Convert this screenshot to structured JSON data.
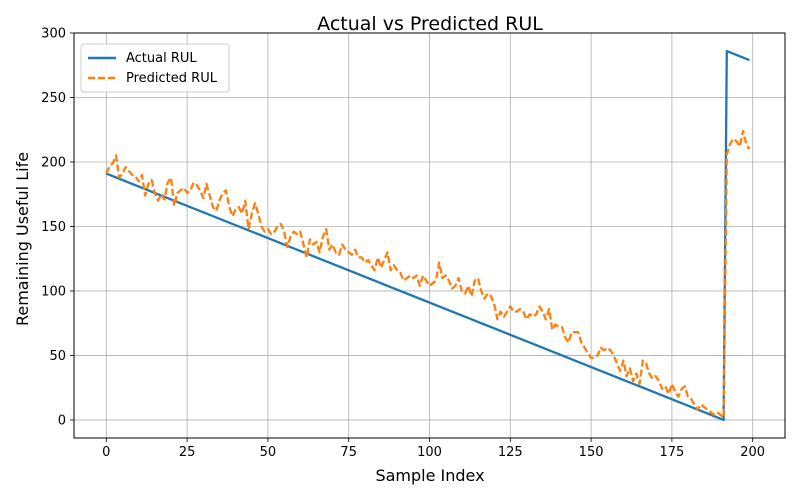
{
  "chart_data": {
    "type": "line",
    "title": "Actual vs Predicted RUL",
    "xlabel": "Sample Index",
    "ylabel": "Remaining Useful Life",
    "xlim": [
      -10,
      210
    ],
    "ylim": [
      -14,
      300
    ],
    "xticks": [
      "0",
      "25",
      "50",
      "75",
      "100",
      "125",
      "150",
      "175",
      "200"
    ],
    "yticks": [
      "0",
      "50",
      "100",
      "150",
      "200",
      "250",
      "300"
    ],
    "grid": true,
    "legend_position": "top-left",
    "series": [
      {
        "name": "Actual RUL",
        "color": "#1f77b4",
        "style": "solid",
        "points": [
          [
            0,
            191
          ],
          [
            191,
            0
          ],
          [
            192,
            286
          ],
          [
            199,
            279
          ]
        ]
      },
      {
        "name": "Predicted RUL",
        "color": "#ff7f0e",
        "style": "dashed",
        "points": [
          [
            0,
            191
          ],
          [
            1,
            197
          ],
          [
            2,
            199
          ],
          [
            3,
            205
          ],
          [
            4,
            188
          ],
          [
            5,
            191
          ],
          [
            6,
            196
          ],
          [
            7,
            193
          ],
          [
            8,
            190
          ],
          [
            9,
            189
          ],
          [
            10,
            185
          ],
          [
            11,
            190
          ],
          [
            12,
            174
          ],
          [
            13,
            183
          ],
          [
            14,
            186
          ],
          [
            15,
            176
          ],
          [
            16,
            170
          ],
          [
            17,
            175
          ],
          [
            18,
            171
          ],
          [
            19,
            184
          ],
          [
            20,
            188
          ],
          [
            21,
            166
          ],
          [
            22,
            176
          ],
          [
            23,
            178
          ],
          [
            24,
            180
          ],
          [
            25,
            176
          ],
          [
            26,
            178
          ],
          [
            27,
            184
          ],
          [
            28,
            182
          ],
          [
            29,
            178
          ],
          [
            30,
            172
          ],
          [
            31,
            183
          ],
          [
            32,
            174
          ],
          [
            33,
            165
          ],
          [
            34,
            162
          ],
          [
            35,
            170
          ],
          [
            36,
            176
          ],
          [
            37,
            178
          ],
          [
            38,
            166
          ],
          [
            39,
            158
          ],
          [
            40,
            163
          ],
          [
            41,
            165
          ],
          [
            42,
            160
          ],
          [
            43,
            170
          ],
          [
            44,
            148
          ],
          [
            45,
            160
          ],
          [
            46,
            168
          ],
          [
            47,
            160
          ],
          [
            48,
            150
          ],
          [
            49,
            146
          ],
          [
            50,
            148
          ],
          [
            51,
            144
          ],
          [
            52,
            146
          ],
          [
            53,
            150
          ],
          [
            54,
            152
          ],
          [
            55,
            146
          ],
          [
            56,
            134
          ],
          [
            57,
            142
          ],
          [
            58,
            146
          ],
          [
            59,
            144
          ],
          [
            60,
            146
          ],
          [
            61,
            136
          ],
          [
            62,
            126
          ],
          [
            63,
            140
          ],
          [
            64,
            136
          ],
          [
            65,
            138
          ],
          [
            66,
            130
          ],
          [
            67,
            142
          ],
          [
            68,
            148
          ],
          [
            69,
            132
          ],
          [
            70,
            136
          ],
          [
            71,
            130
          ],
          [
            72,
            128
          ],
          [
            73,
            136
          ],
          [
            74,
            132
          ],
          [
            75,
            130
          ],
          [
            76,
            128
          ],
          [
            77,
            132
          ],
          [
            78,
            126
          ],
          [
            79,
            126
          ],
          [
            80,
            122
          ],
          [
            81,
            124
          ],
          [
            82,
            120
          ],
          [
            83,
            116
          ],
          [
            84,
            126
          ],
          [
            85,
            118
          ],
          [
            86,
            124
          ],
          [
            87,
            130
          ],
          [
            88,
            116
          ],
          [
            89,
            120
          ],
          [
            90,
            116
          ],
          [
            91,
            114
          ],
          [
            92,
            108
          ],
          [
            93,
            110
          ],
          [
            94,
            112
          ],
          [
            95,
            110
          ],
          [
            96,
            112
          ],
          [
            97,
            104
          ],
          [
            98,
            112
          ],
          [
            99,
            108
          ],
          [
            100,
            104
          ],
          [
            101,
            106
          ],
          [
            102,
            108
          ],
          [
            103,
            122
          ],
          [
            104,
            110
          ],
          [
            105,
            112
          ],
          [
            106,
            108
          ],
          [
            107,
            102
          ],
          [
            108,
            104
          ],
          [
            109,
            110
          ],
          [
            110,
            100
          ],
          [
            111,
            98
          ],
          [
            112,
            104
          ],
          [
            113,
            96
          ],
          [
            114,
            108
          ],
          [
            115,
            110
          ],
          [
            116,
            100
          ],
          [
            117,
            94
          ],
          [
            118,
            98
          ],
          [
            119,
            96
          ],
          [
            120,
            90
          ],
          [
            121,
            78
          ],
          [
            122,
            84
          ],
          [
            123,
            80
          ],
          [
            124,
            84
          ],
          [
            125,
            88
          ],
          [
            126,
            84
          ],
          [
            127,
            84
          ],
          [
            128,
            86
          ],
          [
            129,
            84
          ],
          [
            130,
            78
          ],
          [
            131,
            82
          ],
          [
            132,
            80
          ],
          [
            133,
            82
          ],
          [
            134,
            88
          ],
          [
            135,
            84
          ],
          [
            136,
            78
          ],
          [
            137,
            86
          ],
          [
            138,
            70
          ],
          [
            139,
            74
          ],
          [
            140,
            72
          ],
          [
            141,
            72
          ],
          [
            142,
            64
          ],
          [
            143,
            60
          ],
          [
            144,
            68
          ],
          [
            145,
            68
          ],
          [
            146,
            68
          ],
          [
            147,
            60
          ],
          [
            148,
            56
          ],
          [
            149,
            52
          ],
          [
            150,
            48
          ],
          [
            151,
            48
          ],
          [
            152,
            50
          ],
          [
            153,
            56
          ],
          [
            154,
            54
          ],
          [
            155,
            56
          ],
          [
            156,
            54
          ],
          [
            157,
            50
          ],
          [
            158,
            44
          ],
          [
            159,
            38
          ],
          [
            160,
            46
          ],
          [
            161,
            34
          ],
          [
            162,
            40
          ],
          [
            163,
            30
          ],
          [
            164,
            36
          ],
          [
            165,
            28
          ],
          [
            166,
            46
          ],
          [
            167,
            44
          ],
          [
            168,
            36
          ],
          [
            169,
            32
          ],
          [
            170,
            34
          ],
          [
            171,
            30
          ],
          [
            172,
            24
          ],
          [
            173,
            26
          ],
          [
            174,
            20
          ],
          [
            175,
            28
          ],
          [
            176,
            22
          ],
          [
            177,
            18
          ],
          [
            178,
            24
          ],
          [
            179,
            26
          ],
          [
            180,
            18
          ],
          [
            181,
            16
          ],
          [
            182,
            12
          ],
          [
            183,
            8
          ],
          [
            184,
            12
          ],
          [
            185,
            10
          ],
          [
            186,
            8
          ],
          [
            187,
            6
          ],
          [
            188,
            4
          ],
          [
            189,
            6
          ],
          [
            190,
            4
          ],
          [
            191,
            2
          ],
          [
            192,
            206
          ],
          [
            193,
            214
          ],
          [
            194,
            218
          ],
          [
            195,
            216
          ],
          [
            196,
            212
          ],
          [
            197,
            224
          ],
          [
            198,
            214
          ],
          [
            199,
            210
          ]
        ]
      }
    ]
  }
}
